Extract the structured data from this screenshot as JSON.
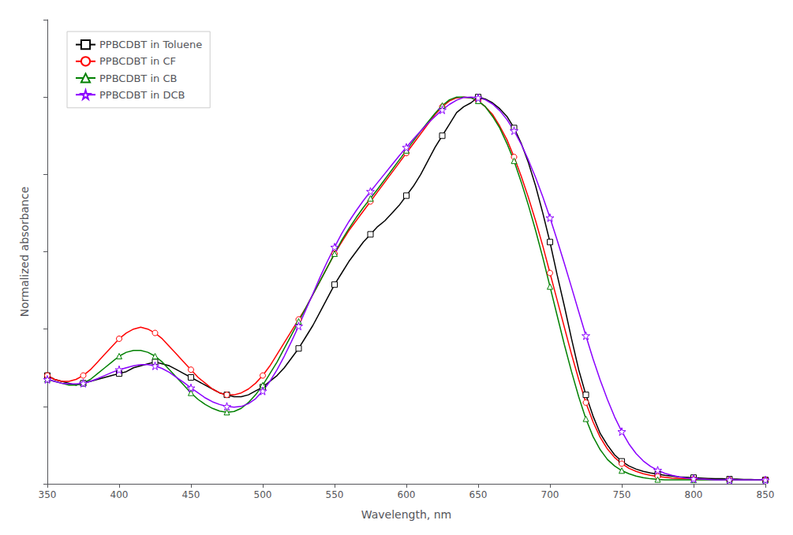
{
  "chart_data": {
    "type": "line",
    "xlabel": "Wavelength, nm",
    "ylabel": "Normalized absorbance",
    "x": [
      350,
      355,
      360,
      365,
      370,
      375,
      380,
      385,
      390,
      395,
      400,
      405,
      410,
      415,
      420,
      425,
      430,
      435,
      440,
      445,
      450,
      455,
      460,
      465,
      470,
      475,
      480,
      485,
      490,
      495,
      500,
      505,
      510,
      515,
      520,
      525,
      530,
      535,
      540,
      545,
      550,
      555,
      560,
      565,
      570,
      575,
      580,
      585,
      590,
      595,
      600,
      605,
      610,
      615,
      620,
      625,
      630,
      635,
      640,
      645,
      650,
      655,
      660,
      665,
      670,
      675,
      680,
      685,
      690,
      695,
      700,
      705,
      710,
      715,
      720,
      725,
      730,
      735,
      740,
      745,
      750,
      755,
      760,
      765,
      770,
      775,
      780,
      785,
      790,
      795,
      800,
      805,
      810,
      815,
      820,
      825,
      830,
      835,
      840,
      845,
      850
    ],
    "xlim": [
      350,
      850
    ],
    "xticks": [
      350,
      400,
      450,
      500,
      550,
      600,
      650,
      700,
      750,
      800,
      850
    ],
    "ylim": [
      0,
      1.2
    ],
    "yticks": [
      0,
      0.2,
      0.4,
      0.6,
      0.8,
      1.0,
      1.2
    ],
    "tick_labels": "x",
    "grid": false,
    "legend": "upper left",
    "series": [
      {
        "name": "PPBCDBT in Toluene",
        "color": "#000000",
        "marker": "square",
        "values": [
          0.28,
          0.27,
          0.265,
          0.26,
          0.255,
          0.26,
          0.265,
          0.27,
          0.275,
          0.28,
          0.285,
          0.29,
          0.3,
          0.305,
          0.31,
          0.315,
          0.31,
          0.305,
          0.295,
          0.285,
          0.275,
          0.265,
          0.255,
          0.245,
          0.235,
          0.23,
          0.225,
          0.225,
          0.23,
          0.24,
          0.25,
          0.265,
          0.28,
          0.3,
          0.325,
          0.35,
          0.38,
          0.41,
          0.445,
          0.48,
          0.515,
          0.545,
          0.575,
          0.6,
          0.625,
          0.645,
          0.665,
          0.68,
          0.7,
          0.72,
          0.745,
          0.77,
          0.8,
          0.835,
          0.87,
          0.9,
          0.93,
          0.96,
          0.975,
          0.985,
          1.0,
          0.995,
          0.985,
          0.97,
          0.95,
          0.92,
          0.88,
          0.83,
          0.77,
          0.7,
          0.625,
          0.54,
          0.46,
          0.375,
          0.295,
          0.23,
          0.175,
          0.13,
          0.1,
          0.075,
          0.058,
          0.046,
          0.038,
          0.032,
          0.028,
          0.025,
          0.022,
          0.02,
          0.018,
          0.017,
          0.016,
          0.015,
          0.014,
          0.013,
          0.013,
          0.012,
          0.012,
          0.011,
          0.011,
          0.01,
          0.01
        ]
      },
      {
        "name": "PPBCDBT in CF",
        "color": "#ff0000",
        "marker": "circle",
        "values": [
          0.28,
          0.27,
          0.265,
          0.265,
          0.27,
          0.28,
          0.295,
          0.315,
          0.335,
          0.355,
          0.375,
          0.39,
          0.4,
          0.405,
          0.4,
          0.39,
          0.375,
          0.355,
          0.335,
          0.315,
          0.295,
          0.275,
          0.26,
          0.245,
          0.235,
          0.23,
          0.23,
          0.235,
          0.245,
          0.26,
          0.28,
          0.305,
          0.335,
          0.365,
          0.395,
          0.425,
          0.455,
          0.49,
          0.525,
          0.56,
          0.595,
          0.625,
          0.655,
          0.68,
          0.705,
          0.73,
          0.755,
          0.78,
          0.805,
          0.83,
          0.855,
          0.88,
          0.905,
          0.93,
          0.955,
          0.975,
          0.99,
          0.998,
          1.0,
          0.998,
          0.99,
          0.975,
          0.955,
          0.925,
          0.89,
          0.845,
          0.795,
          0.74,
          0.68,
          0.615,
          0.545,
          0.475,
          0.405,
          0.335,
          0.27,
          0.21,
          0.16,
          0.12,
          0.09,
          0.068,
          0.052,
          0.04,
          0.032,
          0.026,
          0.022,
          0.019,
          0.017,
          0.015,
          0.014,
          0.013,
          0.012,
          0.011,
          0.011,
          0.01,
          0.01,
          0.01,
          0.01,
          0.01,
          0.01,
          0.01,
          0.01
        ]
      },
      {
        "name": "PPBCDBT in CB",
        "color": "#008000",
        "marker": "triangle",
        "values": [
          0.27,
          0.265,
          0.26,
          0.255,
          0.255,
          0.26,
          0.27,
          0.285,
          0.3,
          0.315,
          0.33,
          0.34,
          0.345,
          0.345,
          0.34,
          0.33,
          0.315,
          0.295,
          0.275,
          0.255,
          0.235,
          0.218,
          0.205,
          0.195,
          0.188,
          0.185,
          0.187,
          0.195,
          0.21,
          0.23,
          0.255,
          0.285,
          0.315,
          0.35,
          0.385,
          0.42,
          0.455,
          0.49,
          0.525,
          0.56,
          0.595,
          0.63,
          0.66,
          0.688,
          0.714,
          0.738,
          0.762,
          0.787,
          0.812,
          0.837,
          0.862,
          0.887,
          0.912,
          0.935,
          0.958,
          0.978,
          0.993,
          1.0,
          1.0,
          0.998,
          0.99,
          0.975,
          0.95,
          0.92,
          0.88,
          0.835,
          0.78,
          0.72,
          0.655,
          0.585,
          0.51,
          0.435,
          0.36,
          0.29,
          0.225,
          0.168,
          0.122,
          0.088,
          0.063,
          0.046,
          0.034,
          0.026,
          0.02,
          0.016,
          0.013,
          0.011,
          0.01,
          0.01,
          0.01,
          0.01,
          0.01,
          0.01,
          0.01,
          0.01,
          0.01,
          0.01,
          0.01,
          0.01,
          0.01,
          0.01,
          0.01
        ]
      },
      {
        "name": "PPBCDBT in DCB",
        "color": "#8B00FF",
        "marker": "star",
        "values": [
          0.27,
          0.265,
          0.26,
          0.258,
          0.258,
          0.26,
          0.265,
          0.272,
          0.28,
          0.288,
          0.295,
          0.3,
          0.305,
          0.308,
          0.308,
          0.305,
          0.298,
          0.288,
          0.275,
          0.262,
          0.248,
          0.235,
          0.222,
          0.212,
          0.205,
          0.2,
          0.198,
          0.2,
          0.207,
          0.22,
          0.24,
          0.265,
          0.295,
          0.33,
          0.368,
          0.408,
          0.45,
          0.492,
          0.535,
          0.575,
          0.612,
          0.647,
          0.678,
          0.706,
          0.732,
          0.756,
          0.779,
          0.802,
          0.825,
          0.848,
          0.87,
          0.892,
          0.912,
          0.932,
          0.95,
          0.967,
          0.981,
          0.992,
          0.999,
          1.0,
          0.998,
          0.993,
          0.982,
          0.965,
          0.942,
          0.913,
          0.878,
          0.837,
          0.792,
          0.742,
          0.688,
          0.63,
          0.57,
          0.508,
          0.445,
          0.383,
          0.323,
          0.268,
          0.218,
          0.173,
          0.135,
          0.103,
          0.078,
          0.059,
          0.045,
          0.035,
          0.027,
          0.022,
          0.018,
          0.015,
          0.013,
          0.012,
          0.011,
          0.01,
          0.01,
          0.01,
          0.01,
          0.01,
          0.01,
          0.01,
          0.01
        ]
      }
    ]
  }
}
